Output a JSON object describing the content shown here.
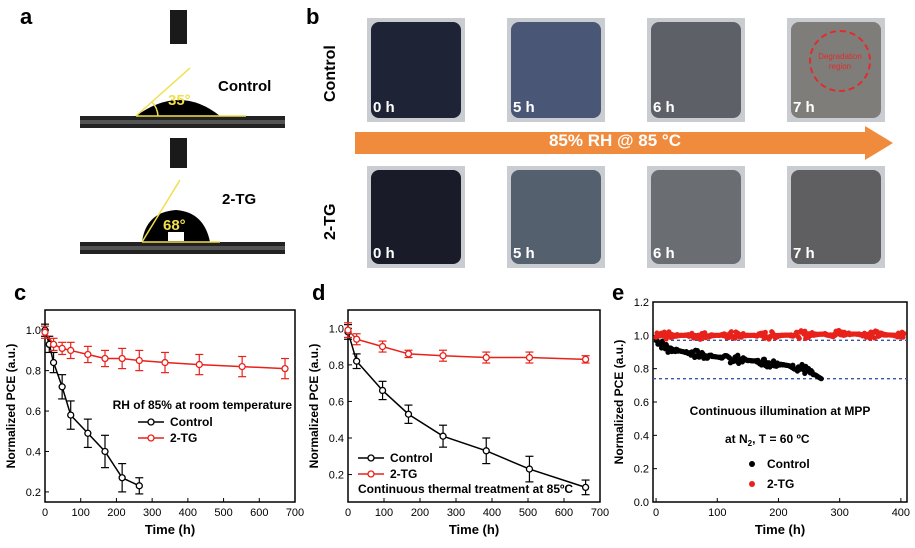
{
  "panels": {
    "a": {
      "label": "a",
      "control_label": "Control",
      "control_angle": "35°",
      "tg_label": "2-TG",
      "tg_angle": "68°"
    },
    "b": {
      "label": "b",
      "row_control": "Control",
      "row_tg": "2-TG",
      "arrow_text": "85% RH @ 85 °C",
      "arrow_color": "#f08a3c",
      "times": [
        "0 h",
        "5 h",
        "6 h",
        "7 h"
      ],
      "degradation_text": [
        "Degradation",
        "region"
      ],
      "tile_colors_control": [
        "#1e2335",
        "#4a5676",
        "#5d6066",
        "#7e7d79"
      ],
      "tile_colors_tg": [
        "#191c28",
        "#55606f",
        "#6a6d72",
        "#5f5f62"
      ]
    },
    "c": {
      "label": "c"
    },
    "d": {
      "label": "d"
    },
    "e": {
      "label": "e"
    }
  },
  "chart_data": [
    {
      "panel": "c",
      "type": "line",
      "xlabel": "Time (h)",
      "ylabel": "Normalized PCE (a.u.)",
      "xlim": [
        0,
        700
      ],
      "ylim": [
        0.15,
        1.1
      ],
      "xticks": [
        0,
        100,
        200,
        300,
        400,
        500,
        600,
        700
      ],
      "yticks": [
        0.2,
        0.4,
        0.6,
        0.8,
        1.0
      ],
      "ytick_labels": [
        "0.2",
        "0.4",
        "0.6",
        "0.8",
        "1.0"
      ],
      "annotation": "RH of 85% at room temperature",
      "legend_position": "middle",
      "series": [
        {
          "name": "Control",
          "color": "#000000",
          "x": [
            0,
            12,
            24,
            48,
            72,
            120,
            168,
            216,
            264
          ],
          "y": [
            1.0,
            0.93,
            0.84,
            0.72,
            0.58,
            0.49,
            0.4,
            0.27,
            0.23
          ],
          "err": [
            0.03,
            0.04,
            0.05,
            0.06,
            0.07,
            0.07,
            0.08,
            0.07,
            0.04
          ]
        },
        {
          "name": "2-TG",
          "color": "#e8221b",
          "x": [
            0,
            24,
            48,
            72,
            120,
            168,
            216,
            264,
            336,
            432,
            552,
            672
          ],
          "y": [
            0.99,
            0.93,
            0.91,
            0.9,
            0.88,
            0.86,
            0.86,
            0.85,
            0.84,
            0.83,
            0.82,
            0.81
          ],
          "err": [
            0.03,
            0.03,
            0.03,
            0.04,
            0.04,
            0.04,
            0.05,
            0.05,
            0.05,
            0.05,
            0.05,
            0.05
          ]
        }
      ]
    },
    {
      "panel": "d",
      "type": "line",
      "xlabel": "Time (h)",
      "ylabel": "Normalized PCE (a.u.)",
      "xlim": [
        0,
        700
      ],
      "ylim": [
        0.05,
        1.1
      ],
      "xticks": [
        0,
        100,
        200,
        300,
        400,
        500,
        600,
        700
      ],
      "yticks": [
        0.2,
        0.4,
        0.6,
        0.8,
        1.0
      ],
      "ytick_labels": [
        "0.2",
        "0.4",
        "0.6",
        "0.8",
        "1.0"
      ],
      "annotation": "Continuous thermal treatment at 85ºC",
      "legend_position": "bottom-left",
      "series": [
        {
          "name": "Control",
          "color": "#000000",
          "x": [
            0,
            24,
            96,
            168,
            264,
            384,
            504,
            660
          ],
          "y": [
            0.98,
            0.82,
            0.66,
            0.53,
            0.41,
            0.33,
            0.23,
            0.13
          ],
          "err": [
            0.04,
            0.04,
            0.05,
            0.05,
            0.06,
            0.07,
            0.07,
            0.04
          ]
        },
        {
          "name": "2-TG",
          "color": "#e8221b",
          "x": [
            0,
            24,
            96,
            168,
            264,
            384,
            504,
            660
          ],
          "y": [
            0.99,
            0.94,
            0.9,
            0.86,
            0.85,
            0.84,
            0.84,
            0.83
          ],
          "err": [
            0.04,
            0.03,
            0.03,
            0.02,
            0.03,
            0.03,
            0.03,
            0.02
          ]
        }
      ]
    },
    {
      "panel": "e",
      "type": "scatter",
      "xlabel": "Time (h)",
      "ylabel": "Normalized PCE (a.u.)",
      "xlim": [
        -5,
        410
      ],
      "ylim": [
        0.0,
        1.2
      ],
      "xticks": [
        0,
        100,
        200,
        300,
        400
      ],
      "yticks": [
        0.0,
        0.2,
        0.4,
        0.6,
        0.8,
        1.0,
        1.2
      ],
      "ytick_labels": [
        "0.0",
        "0.2",
        "0.4",
        "0.6",
        "0.8",
        "1.0",
        "1.2"
      ],
      "annotation_lines": [
        "Continuous illumination at MPP",
        "at N",
        "2",
        ", T = 60 ºC"
      ],
      "reference_lines": [
        0.97,
        0.74
      ],
      "reference_color": "#3a54a8",
      "legend_position": "bottom-center",
      "series": [
        {
          "name": "Control",
          "color": "#000000",
          "x_range": [
            0,
            270
          ],
          "trend": [
            [
              0,
              0.97
            ],
            [
              20,
              0.92
            ],
            [
              60,
              0.89
            ],
            [
              100,
              0.87
            ],
            [
              150,
              0.85
            ],
            [
              200,
              0.83
            ],
            [
              240,
              0.8
            ],
            [
              270,
              0.74
            ]
          ],
          "noise": 0.03
        },
        {
          "name": "2-TG",
          "color": "#e8221b",
          "x_range": [
            0,
            405
          ],
          "trend": [
            [
              0,
              1.0
            ],
            [
              100,
              1.0
            ],
            [
              200,
              1.0
            ],
            [
              300,
              1.01
            ],
            [
              405,
              1.0
            ]
          ],
          "noise": 0.025
        }
      ]
    }
  ]
}
